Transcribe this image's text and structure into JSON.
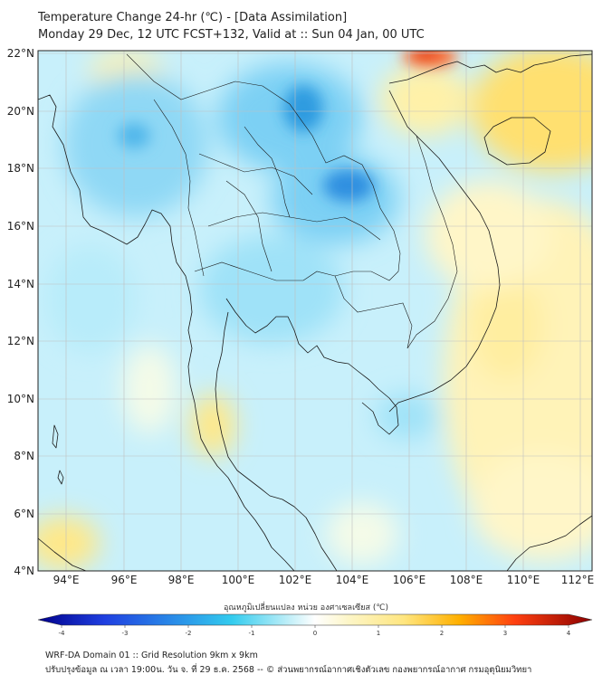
{
  "header": {
    "title_line1": "Temperature Change 24-hr (℃) - [Data Assimilation]",
    "title_line2": "Monday 29 Dec, 12 UTC FCST+132, Valid at :: Sun 04 Jan, 00 UTC"
  },
  "map": {
    "lat_labels": [
      "22°N",
      "20°N",
      "18°N",
      "16°N",
      "14°N",
      "12°N",
      "10°N",
      "8°N",
      "6°N",
      "4°N"
    ],
    "lon_labels": [
      "94°E",
      "96°E",
      "98°E",
      "100°E",
      "102°E",
      "104°E",
      "106°E",
      "108°E",
      "110°E",
      "112°E"
    ],
    "colors": {
      "land_line": "#1a1a1a",
      "grid": "#bfbfbf"
    }
  },
  "colorbar": {
    "title": "อุณหภูมิเปลี่ยนแปลง หน่วย องศาเซลเซียส (℃)",
    "ticks": [
      "-4",
      "-3",
      "-2",
      "-1",
      "0",
      "1",
      "2",
      "3",
      "4"
    ],
    "colors": {
      "cold_end": "#00008b",
      "mid_cold": "#33ccee",
      "neutral": "#ffffff",
      "mid_warm": "#ffe680",
      "warm_end": "#8b0000"
    }
  },
  "footer": {
    "line1": "WRF-DA Domain 01 :: Grid Resolution 9km x 9km",
    "line2": "ปรับปรุงข้อมูล ณ เวลา 19:00น. วัน จ. ที่ 29 ธ.ค. 2568 -- © ส่วนพยากรณ์อากาศเชิงตัวเลข กองพยากรณ์อากาศ กรมอุตุนิยมวิทยา"
  }
}
